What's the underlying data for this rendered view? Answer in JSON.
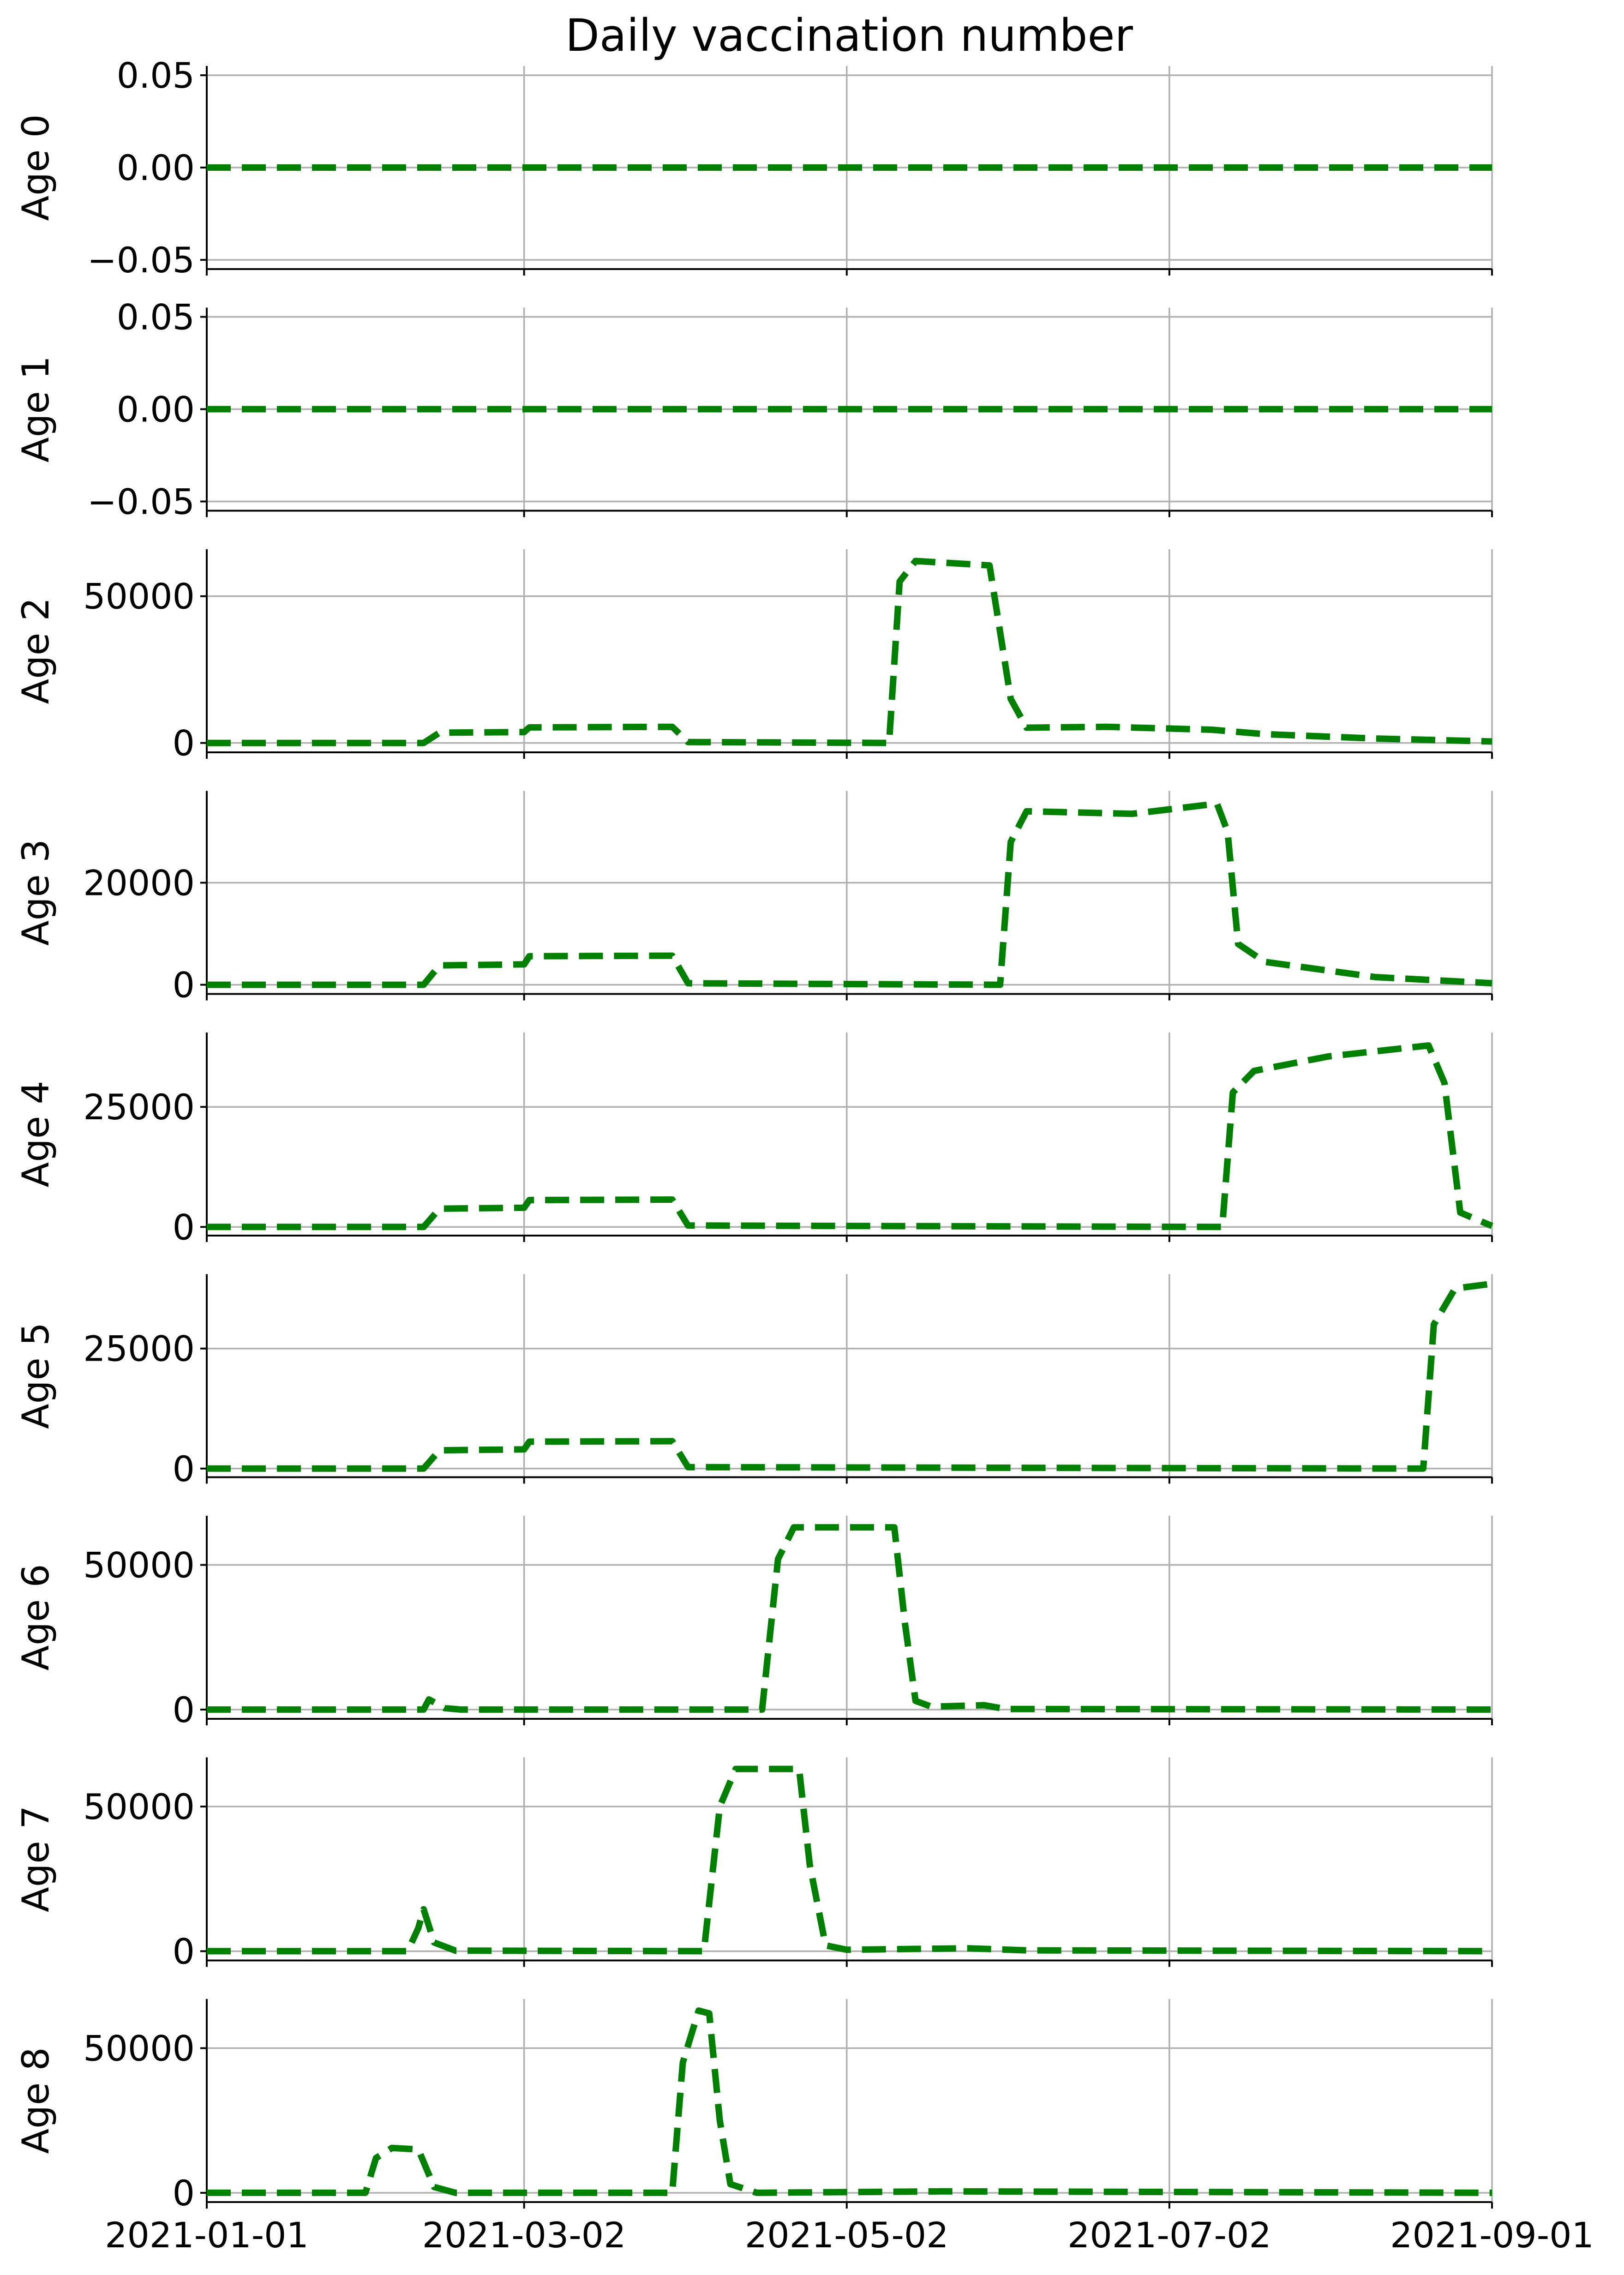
{
  "chart_data": {
    "type": "line",
    "title": "Daily vaccination number",
    "x_ticks": [
      "2021-01-01",
      "2021-03-02",
      "2021-05-02",
      "2021-07-02",
      "2021-09-01"
    ],
    "xlim": [
      "2021-01-01",
      "2021-09-01"
    ],
    "grid": true,
    "line_style": "dashed",
    "line_color": "#008000",
    "subplots": [
      {
        "ylabel": "Age 0",
        "ylim": [
          -0.055,
          0.055
        ],
        "yticks": [
          0.05,
          0.0,
          -0.05
        ],
        "ytick_labels": [
          "0.05",
          "0.00",
          "−0.05"
        ],
        "points": [
          [
            "2021-01-01",
            0
          ],
          [
            "2021-09-01",
            0
          ]
        ]
      },
      {
        "ylabel": "Age 1",
        "ylim": [
          -0.055,
          0.055
        ],
        "yticks": [
          0.05,
          0.0,
          -0.05
        ],
        "ytick_labels": [
          "0.05",
          "0.00",
          "−0.05"
        ],
        "points": [
          [
            "2021-01-01",
            0
          ],
          [
            "2021-09-01",
            0
          ]
        ]
      },
      {
        "ylabel": "Age 2",
        "ylim": [
          -3200,
          66000
        ],
        "yticks": [
          0,
          50000
        ],
        "ytick_labels": [
          "0",
          "50000"
        ],
        "points": [
          [
            "2021-01-01",
            0
          ],
          [
            "2021-02-11",
            0
          ],
          [
            "2021-02-14",
            3500
          ],
          [
            "2021-03-02",
            3700
          ],
          [
            "2021-03-03",
            5300
          ],
          [
            "2021-03-30",
            5500
          ],
          [
            "2021-04-02",
            300
          ],
          [
            "2021-05-10",
            0
          ],
          [
            "2021-05-12",
            55000
          ],
          [
            "2021-05-15",
            62000
          ],
          [
            "2021-05-29",
            60500
          ],
          [
            "2021-06-02",
            15000
          ],
          [
            "2021-06-05",
            5200
          ],
          [
            "2021-06-20",
            5500
          ],
          [
            "2021-07-10",
            4500
          ],
          [
            "2021-07-20",
            3000
          ],
          [
            "2021-08-10",
            1500
          ],
          [
            "2021-09-01",
            500
          ]
        ]
      },
      {
        "ylabel": "Age 3",
        "ylim": [
          -1800,
          38000
        ],
        "yticks": [
          0,
          20000
        ],
        "ytick_labels": [
          "0",
          "20000"
        ],
        "points": [
          [
            "2021-01-01",
            0
          ],
          [
            "2021-02-11",
            0
          ],
          [
            "2021-02-14",
            3800
          ],
          [
            "2021-03-02",
            4000
          ],
          [
            "2021-03-03",
            5600
          ],
          [
            "2021-03-30",
            5700
          ],
          [
            "2021-04-02",
            300
          ],
          [
            "2021-05-31",
            0
          ],
          [
            "2021-06-02",
            28000
          ],
          [
            "2021-06-05",
            34000
          ],
          [
            "2021-06-25",
            33500
          ],
          [
            "2021-07-11",
            35500
          ],
          [
            "2021-07-13",
            30000
          ],
          [
            "2021-07-15",
            8000
          ],
          [
            "2021-07-20",
            4500
          ],
          [
            "2021-08-10",
            1500
          ],
          [
            "2021-09-01",
            300
          ]
        ]
      },
      {
        "ylabel": "Age 4",
        "ylim": [
          -1800,
          40500
        ],
        "yticks": [
          0,
          25000
        ],
        "ytick_labels": [
          "0",
          "25000"
        ],
        "points": [
          [
            "2021-01-01",
            0
          ],
          [
            "2021-02-11",
            0
          ],
          [
            "2021-02-14",
            3800
          ],
          [
            "2021-03-02",
            4000
          ],
          [
            "2021-03-03",
            5600
          ],
          [
            "2021-03-30",
            5700
          ],
          [
            "2021-04-02",
            300
          ],
          [
            "2021-07-12",
            0
          ],
          [
            "2021-07-14",
            28000
          ],
          [
            "2021-07-18",
            32500
          ],
          [
            "2021-08-01",
            35500
          ],
          [
            "2021-08-20",
            37800
          ],
          [
            "2021-08-23",
            30000
          ],
          [
            "2021-08-26",
            3000
          ],
          [
            "2021-09-01",
            200
          ]
        ]
      },
      {
        "ylabel": "Age 5",
        "ylim": [
          -1800,
          40500
        ],
        "yticks": [
          0,
          25000
        ],
        "ytick_labels": [
          "0",
          "25000"
        ],
        "points": [
          [
            "2021-01-01",
            0
          ],
          [
            "2021-02-11",
            0
          ],
          [
            "2021-02-14",
            3800
          ],
          [
            "2021-03-02",
            4000
          ],
          [
            "2021-03-03",
            5600
          ],
          [
            "2021-03-30",
            5700
          ],
          [
            "2021-04-02",
            300
          ],
          [
            "2021-08-19",
            0
          ],
          [
            "2021-08-21",
            30000
          ],
          [
            "2021-08-25",
            37500
          ],
          [
            "2021-09-01",
            38500
          ]
        ]
      },
      {
        "ylabel": "Age 6",
        "ylim": [
          -3200,
          67000
        ],
        "yticks": [
          0,
          50000
        ],
        "ytick_labels": [
          "0",
          "50000"
        ],
        "points": [
          [
            "2021-01-01",
            0
          ],
          [
            "2021-02-11",
            0
          ],
          [
            "2021-02-12",
            3500
          ],
          [
            "2021-02-15",
            500
          ],
          [
            "2021-02-18",
            0
          ],
          [
            "2021-04-16",
            0
          ],
          [
            "2021-04-19",
            52000
          ],
          [
            "2021-04-22",
            63000
          ],
          [
            "2021-05-11",
            63000
          ],
          [
            "2021-05-13",
            30000
          ],
          [
            "2021-05-15",
            3000
          ],
          [
            "2021-05-18",
            1000
          ],
          [
            "2021-05-28",
            1500
          ],
          [
            "2021-06-01",
            200
          ],
          [
            "2021-09-01",
            0
          ]
        ]
      },
      {
        "ylabel": "Age 7",
        "ylim": [
          -3200,
          67000
        ],
        "yticks": [
          0,
          50000
        ],
        "ytick_labels": [
          "0",
          "50000"
        ],
        "points": [
          [
            "2021-01-01",
            0
          ],
          [
            "2021-02-08",
            0
          ],
          [
            "2021-02-10",
            8000
          ],
          [
            "2021-02-11",
            14500
          ],
          [
            "2021-02-13",
            3000
          ],
          [
            "2021-02-17",
            200
          ],
          [
            "2021-04-05",
            0
          ],
          [
            "2021-04-08",
            50000
          ],
          [
            "2021-04-11",
            63000
          ],
          [
            "2021-04-23",
            63000
          ],
          [
            "2021-04-25",
            30000
          ],
          [
            "2021-04-28",
            2000
          ],
          [
            "2021-05-02",
            500
          ],
          [
            "2021-05-25",
            1000
          ],
          [
            "2021-06-05",
            300
          ],
          [
            "2021-09-01",
            0
          ]
        ]
      },
      {
        "ylabel": "Age 8",
        "ylim": [
          -3200,
          67000
        ],
        "yticks": [
          0,
          50000
        ],
        "ytick_labels": [
          "0",
          "50000"
        ],
        "points": [
          [
            "2021-01-01",
            0
          ],
          [
            "2021-01-31",
            0
          ],
          [
            "2021-02-02",
            12000
          ],
          [
            "2021-02-05",
            15500
          ],
          [
            "2021-02-10",
            15000
          ],
          [
            "2021-02-13",
            2000
          ],
          [
            "2021-02-17",
            0
          ],
          [
            "2021-03-30",
            0
          ],
          [
            "2021-04-01",
            45000
          ],
          [
            "2021-04-04",
            63000
          ],
          [
            "2021-04-06",
            62000
          ],
          [
            "2021-04-08",
            25000
          ],
          [
            "2021-04-10",
            3000
          ],
          [
            "2021-04-15",
            0
          ],
          [
            "2021-05-20",
            500
          ],
          [
            "2021-09-01",
            0
          ]
        ]
      }
    ]
  }
}
